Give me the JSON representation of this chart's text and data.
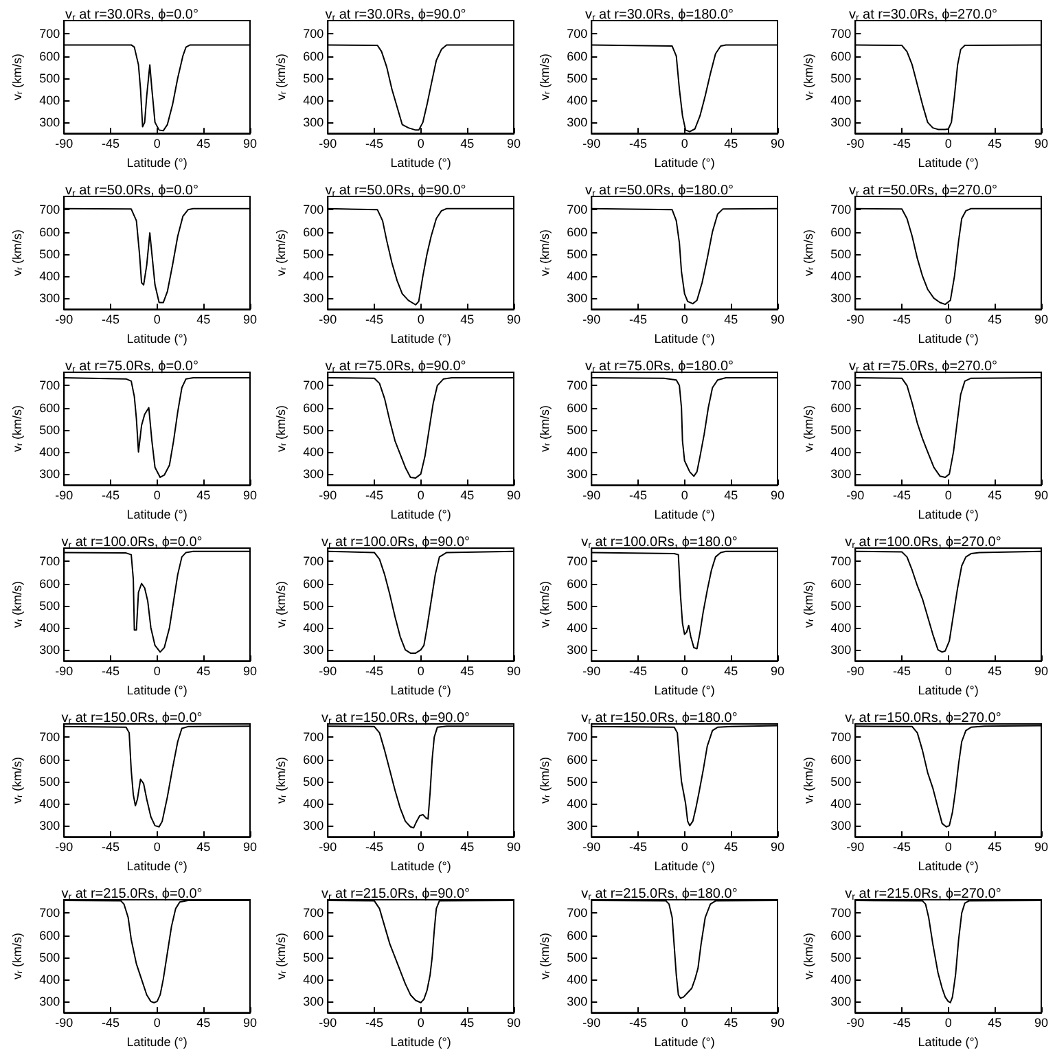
{
  "chart_data": [
    {
      "type": "line",
      "title": "v$_{r}$ at r=30.0Rs, ϕ=0.0°",
      "xlabel": "Latitude (°)",
      "ylabel": "v$_{r}$ (km/s)",
      "color": "#000000",
      "xlim": [
        -90,
        90
      ],
      "xticks": [
        -90,
        -45,
        0,
        45,
        90
      ],
      "ylim": [
        250,
        760
      ],
      "yticks": [
        300,
        400,
        500,
        600,
        700
      ],
      "x": [
        -90,
        -25,
        -22,
        -18,
        -16,
        -14,
        -12,
        -10,
        -7,
        -5,
        -2,
        2,
        6,
        10,
        15,
        20,
        25,
        28,
        32,
        90
      ],
      "values": [
        650,
        650,
        640,
        560,
        450,
        280,
        300,
        420,
        560,
        450,
        300,
        265,
        262,
        290,
        380,
        500,
        600,
        640,
        650,
        650
      ]
    },
    {
      "type": "line",
      "title": "v$_{r}$ at r=30.0Rs, ϕ=90.0°",
      "xlabel": "Latitude (°)",
      "ylabel": "v$_{r}$ (km/s)",
      "color": "#000000",
      "xlim": [
        -90,
        90
      ],
      "xticks": [
        -90,
        -45,
        0,
        45,
        90
      ],
      "ylim": [
        250,
        760
      ],
      "yticks": [
        300,
        400,
        500,
        600,
        700
      ],
      "x": [
        -90,
        -42,
        -38,
        -33,
        -28,
        -23,
        -18,
        -12,
        -5,
        -2,
        2,
        6,
        10,
        15,
        20,
        25,
        90
      ],
      "values": [
        650,
        648,
        620,
        550,
        450,
        370,
        290,
        275,
        265,
        265,
        300,
        380,
        470,
        580,
        630,
        650,
        650
      ]
    },
    {
      "type": "line",
      "title": "v$_{r}$ at r=30.0Rs, ϕ=180.0°",
      "xlabel": "Latitude (°)",
      "ylabel": "v$_{r}$ (km/s)",
      "color": "#000000",
      "xlim": [
        -90,
        90
      ],
      "xticks": [
        -90,
        -45,
        0,
        45,
        90
      ],
      "ylim": [
        250,
        760
      ],
      "yticks": [
        300,
        400,
        500,
        600,
        700
      ],
      "x": [
        -90,
        -12,
        -8,
        -5,
        -2,
        1,
        5,
        10,
        15,
        20,
        25,
        30,
        35,
        40,
        90
      ],
      "values": [
        650,
        645,
        600,
        450,
        330,
        265,
        258,
        270,
        330,
        420,
        520,
        610,
        645,
        650,
        650
      ]
    },
    {
      "type": "line",
      "title": "v$_{r}$ at r=30.0Rs, ϕ=270.0°",
      "xlabel": "Latitude (°)",
      "ylabel": "v$_{r}$ (km/s)",
      "color": "#000000",
      "xlim": [
        -90,
        90
      ],
      "xticks": [
        -90,
        -45,
        0,
        45,
        90
      ],
      "ylim": [
        250,
        760
      ],
      "yticks": [
        300,
        400,
        500,
        600,
        700
      ],
      "x": [
        -90,
        -45,
        -40,
        -35,
        -30,
        -25,
        -20,
        -15,
        -10,
        -3,
        0,
        3,
        6,
        9,
        12,
        16,
        90
      ],
      "values": [
        650,
        648,
        620,
        560,
        470,
        380,
        300,
        275,
        268,
        268,
        270,
        300,
        420,
        560,
        630,
        648,
        650
      ]
    },
    {
      "type": "line",
      "title": "v$_{r}$ at r=50.0Rs, ϕ=0.0°",
      "xlabel": "Latitude (°)",
      "ylabel": "v$_{r}$ (km/s)",
      "color": "#000000",
      "xlim": [
        -90,
        90
      ],
      "xticks": [
        -90,
        -45,
        0,
        45,
        90
      ],
      "ylim": [
        250,
        760
      ],
      "yticks": [
        300,
        400,
        500,
        600,
        700
      ],
      "x": [
        -90,
        -25,
        -20,
        -17,
        -15,
        -13,
        -10,
        -7,
        -5,
        -2,
        2,
        6,
        10,
        15,
        20,
        25,
        30,
        35,
        90
      ],
      "values": [
        705,
        703,
        650,
        500,
        370,
        360,
        450,
        595,
        500,
        360,
        280,
        280,
        330,
        450,
        580,
        670,
        700,
        705,
        705
      ]
    },
    {
      "type": "line",
      "title": "v$_{r}$ at r=50.0Rs, ϕ=90.0°",
      "xlabel": "Latitude (°)",
      "ylabel": "v$_{r}$ (km/s)",
      "color": "#000000",
      "xlim": [
        -90,
        90
      ],
      "xticks": [
        -90,
        -45,
        0,
        45,
        90
      ],
      "ylim": [
        250,
        760
      ],
      "yticks": [
        300,
        400,
        500,
        600,
        700
      ],
      "x": [
        -90,
        -42,
        -37,
        -33,
        -28,
        -23,
        -18,
        -12,
        -5,
        -2,
        2,
        6,
        10,
        15,
        20,
        25,
        90
      ],
      "values": [
        705,
        700,
        650,
        560,
        460,
        380,
        320,
        290,
        270,
        285,
        400,
        500,
        580,
        660,
        695,
        705,
        705
      ]
    },
    {
      "type": "line",
      "title": "v$_{r}$ at r=50.0Rs, ϕ=180.0°",
      "xlabel": "Latitude (°)",
      "ylabel": "v$_{r}$ (km/s)",
      "color": "#000000",
      "xlim": [
        -90,
        90
      ],
      "xticks": [
        -90,
        -45,
        0,
        45,
        90
      ],
      "ylim": [
        250,
        760
      ],
      "yticks": [
        300,
        400,
        500,
        600,
        700
      ],
      "x": [
        -90,
        -12,
        -8,
        -5,
        -3,
        0,
        3,
        8,
        12,
        17,
        22,
        27,
        32,
        37,
        90
      ],
      "values": [
        705,
        700,
        650,
        550,
        420,
        320,
        285,
        275,
        290,
        370,
        480,
        600,
        680,
        703,
        705
      ]
    },
    {
      "type": "line",
      "title": "v$_{r}$ at r=50.0Rs, ϕ=270.0°",
      "xlabel": "Latitude (°)",
      "ylabel": "v$_{r}$ (km/s)",
      "color": "#000000",
      "xlim": [
        -90,
        90
      ],
      "xticks": [
        -90,
        -45,
        0,
        45,
        90
      ],
      "ylim": [
        250,
        760
      ],
      "yticks": [
        300,
        400,
        500,
        600,
        700
      ],
      "x": [
        -90,
        -45,
        -40,
        -35,
        -30,
        -25,
        -20,
        -14,
        -8,
        -3,
        2,
        6,
        10,
        13,
        17,
        22,
        90
      ],
      "values": [
        705,
        703,
        660,
        580,
        480,
        400,
        340,
        300,
        280,
        272,
        290,
        400,
        560,
        660,
        695,
        705,
        705
      ]
    },
    {
      "type": "line",
      "title": "v$_{r}$ at r=75.0Rs, ϕ=0.0°",
      "xlabel": "Latitude (°)",
      "ylabel": "v$_{r}$ (km/s)",
      "color": "#000000",
      "xlim": [
        -90,
        90
      ],
      "xticks": [
        -90,
        -45,
        0,
        45,
        90
      ],
      "ylim": [
        250,
        760
      ],
      "yticks": [
        300,
        400,
        500,
        600,
        700
      ],
      "x": [
        -90,
        -30,
        -25,
        -22,
        -20,
        -18,
        -15,
        -12,
        -8,
        -5,
        -2,
        3,
        7,
        12,
        16,
        20,
        24,
        28,
        35,
        90
      ],
      "values": [
        735,
        730,
        720,
        650,
        550,
        400,
        520,
        570,
        600,
        450,
        330,
        285,
        295,
        340,
        450,
        580,
        690,
        730,
        735,
        735
      ]
    },
    {
      "type": "line",
      "title": "v$_{r}$ at r=75.0Rs, ϕ=90.0°",
      "xlabel": "Latitude (°)",
      "ylabel": "v$_{r}$ (km/s)",
      "color": "#000000",
      "xlim": [
        -90,
        90
      ],
      "xticks": [
        -90,
        -45,
        0,
        45,
        90
      ],
      "ylim": [
        250,
        760
      ],
      "yticks": [
        300,
        400,
        500,
        600,
        700
      ],
      "x": [
        -90,
        -45,
        -40,
        -35,
        -30,
        -25,
        -20,
        -15,
        -10,
        -5,
        0,
        4,
        8,
        12,
        16,
        22,
        30,
        90
      ],
      "values": [
        735,
        733,
        710,
        640,
        540,
        450,
        390,
        330,
        285,
        282,
        300,
        380,
        500,
        620,
        700,
        730,
        735,
        735
      ]
    },
    {
      "type": "line",
      "title": "v$_{r}$ at r=75.0Rs, ϕ=180.0°",
      "xlabel": "Latitude (°)",
      "ylabel": "v$_{r}$ (km/s)",
      "color": "#000000",
      "xlim": [
        -90,
        90
      ],
      "xticks": [
        -90,
        -45,
        0,
        45,
        90
      ],
      "ylim": [
        250,
        760
      ],
      "yticks": [
        300,
        400,
        500,
        600,
        700
      ],
      "x": [
        -90,
        -20,
        -8,
        -5,
        -3,
        -2,
        0,
        2,
        5,
        9,
        12,
        15,
        19,
        23,
        27,
        32,
        40,
        90
      ],
      "values": [
        735,
        733,
        725,
        700,
        600,
        450,
        360,
        340,
        310,
        290,
        310,
        380,
        480,
        600,
        690,
        725,
        735,
        735
      ]
    },
    {
      "type": "line",
      "title": "v$_{r}$ at r=75.0Rs, ϕ=270.0°",
      "xlabel": "Latitude (°)",
      "ylabel": "v$_{r}$ (km/s)",
      "color": "#000000",
      "xlim": [
        -90,
        90
      ],
      "xticks": [
        -90,
        -45,
        0,
        45,
        90
      ],
      "ylim": [
        250,
        760
      ],
      "yticks": [
        300,
        400,
        500,
        600,
        700
      ],
      "x": [
        -90,
        -45,
        -40,
        -35,
        -30,
        -25,
        -20,
        -14,
        -8,
        -3,
        1,
        5,
        9,
        12,
        16,
        22,
        90
      ],
      "values": [
        735,
        733,
        700,
        620,
        530,
        460,
        400,
        330,
        290,
        285,
        300,
        400,
        550,
        660,
        720,
        733,
        735
      ]
    },
    {
      "type": "line",
      "title": "v$_{r}$ at r=100.0Rs, ϕ=0.0°",
      "xlabel": "Latitude (°)",
      "ylabel": "v$_{r}$ (km/s)",
      "color": "#000000",
      "xlim": [
        -90,
        90
      ],
      "xticks": [
        -90,
        -45,
        0,
        45,
        90
      ],
      "ylim": [
        250,
        760
      ],
      "yticks": [
        300,
        400,
        500,
        600,
        700
      ],
      "x": [
        -90,
        -30,
        -25,
        -23,
        -22,
        -20,
        -18,
        -15,
        -12,
        -9,
        -6,
        -2,
        3,
        7,
        12,
        16,
        20,
        24,
        28,
        35,
        90
      ],
      "values": [
        740,
        738,
        730,
        620,
        390,
        390,
        560,
        600,
        580,
        520,
        400,
        320,
        290,
        310,
        400,
        520,
        640,
        720,
        740,
        745,
        745
      ]
    },
    {
      "type": "line",
      "title": "v$_{r}$ at r=100.0Rs, ϕ=90.0°",
      "xlabel": "Latitude (°)",
      "ylabel": "v$_{r}$ (km/s)",
      "color": "#000000",
      "xlim": [
        -90,
        90
      ],
      "xticks": [
        -90,
        -45,
        0,
        45,
        90
      ],
      "ylim": [
        250,
        760
      ],
      "yticks": [
        300,
        400,
        500,
        600,
        700
      ],
      "x": [
        -90,
        -45,
        -40,
        -35,
        -30,
        -25,
        -20,
        -15,
        -10,
        -5,
        0,
        3,
        6,
        10,
        14,
        18,
        25,
        90
      ],
      "values": [
        745,
        740,
        710,
        640,
        550,
        450,
        360,
        300,
        285,
        285,
        300,
        320,
        400,
        520,
        640,
        720,
        740,
        745
      ]
    },
    {
      "type": "line",
      "title": "v$_{r}$ at r=100.0Rs, ϕ=180.0°",
      "xlabel": "Latitude (°)",
      "ylabel": "v$_{r}$ (km/s)",
      "color": "#000000",
      "xlim": [
        -90,
        90
      ],
      "xticks": [
        -90,
        -45,
        0,
        45,
        90
      ],
      "ylim": [
        250,
        760
      ],
      "yticks": [
        300,
        400,
        500,
        600,
        700
      ],
      "x": [
        -90,
        -10,
        -6,
        -4,
        -2,
        0,
        2,
        4,
        6,
        9,
        12,
        15,
        18,
        22,
        26,
        30,
        35,
        40,
        90
      ],
      "values": [
        740,
        735,
        730,
        550,
        420,
        370,
        380,
        410,
        360,
        310,
        305,
        380,
        470,
        570,
        660,
        720,
        740,
        745,
        745
      ]
    },
    {
      "type": "line",
      "title": "v$_{r}$ at r=100.0Rs, ϕ=270.0°",
      "xlabel": "Latitude (°)",
      "ylabel": "v$_{r}$ (km/s)",
      "color": "#000000",
      "xlim": [
        -90,
        90
      ],
      "xticks": [
        -90,
        -45,
        0,
        45,
        90
      ],
      "ylim": [
        250,
        760
      ],
      "yticks": [
        300,
        400,
        500,
        600,
        700
      ],
      "x": [
        -90,
        -45,
        -40,
        -35,
        -30,
        -25,
        -20,
        -15,
        -10,
        -6,
        -3,
        1,
        5,
        9,
        13,
        17,
        22,
        30,
        90
      ],
      "values": [
        745,
        743,
        720,
        660,
        590,
        530,
        450,
        370,
        300,
        290,
        295,
        340,
        460,
        580,
        680,
        720,
        735,
        740,
        745
      ]
    },
    {
      "type": "line",
      "title": "v$_{r}$ at r=150.0Rs, ϕ=0.0°",
      "xlabel": "Latitude (°)",
      "ylabel": "v$_{r}$ (km/s)",
      "color": "#000000",
      "xlim": [
        -90,
        90
      ],
      "xticks": [
        -90,
        -45,
        0,
        45,
        90
      ],
      "ylim": [
        250,
        760
      ],
      "yticks": [
        300,
        400,
        500,
        600,
        700
      ],
      "x": [
        -90,
        -30,
        -27,
        -25,
        -23,
        -21,
        -19,
        -16,
        -13,
        -10,
        -6,
        -2,
        2,
        5,
        10,
        15,
        20,
        24,
        30,
        90
      ],
      "values": [
        748,
        745,
        720,
        550,
        440,
        390,
        420,
        510,
        490,
        420,
        340,
        300,
        295,
        320,
        430,
        560,
        680,
        740,
        748,
        750
      ]
    },
    {
      "type": "line",
      "title": "v$_{r}$ at r=150.0Rs, ϕ=90.0°",
      "xlabel": "Latitude (°)",
      "ylabel": "v$_{r}$ (km/s)",
      "color": "#000000",
      "xlim": [
        -90,
        90
      ],
      "xticks": [
        -90,
        -45,
        0,
        45,
        90
      ],
      "ylim": [
        250,
        760
      ],
      "yticks": [
        300,
        400,
        500,
        600,
        700
      ],
      "x": [
        -90,
        -45,
        -40,
        -35,
        -30,
        -25,
        -20,
        -15,
        -10,
        -7,
        -4,
        -1,
        2,
        5,
        7,
        9,
        11,
        13,
        16,
        25,
        90
      ],
      "values": [
        750,
        748,
        720,
        640,
        550,
        460,
        380,
        320,
        295,
        290,
        320,
        345,
        350,
        335,
        330,
        450,
        600,
        700,
        745,
        750,
        750
      ]
    },
    {
      "type": "line",
      "title": "v$_{r}$ at r=150.0Rs, ϕ=180.0°",
      "xlabel": "Latitude (°)",
      "ylabel": "v$_{r}$ (km/s)",
      "color": "#000000",
      "xlim": [
        -90,
        90
      ],
      "xticks": [
        -90,
        -45,
        0,
        45,
        90
      ],
      "ylim": [
        250,
        760
      ],
      "yticks": [
        300,
        400,
        500,
        600,
        700
      ],
      "x": [
        -90,
        -10,
        -7,
        -5,
        -3,
        -1,
        1,
        3,
        5,
        8,
        11,
        14,
        18,
        22,
        27,
        32,
        45,
        90
      ],
      "values": [
        748,
        745,
        720,
        600,
        500,
        450,
        400,
        320,
        300,
        320,
        380,
        450,
        550,
        660,
        730,
        745,
        748,
        752
      ]
    },
    {
      "type": "line",
      "title": "v$_{r}$ at r=150.0Rs, ϕ=270.0°",
      "xlabel": "Latitude (°)",
      "ylabel": "v$_{r}$ (km/s)",
      "color": "#000000",
      "xlim": [
        -90,
        90
      ],
      "xticks": [
        -90,
        -45,
        0,
        45,
        90
      ],
      "ylim": [
        250,
        760
      ],
      "yticks": [
        300,
        400,
        500,
        600,
        700
      ],
      "x": [
        -90,
        -35,
        -30,
        -25,
        -20,
        -15,
        -10,
        -6,
        -2,
        1,
        4,
        7,
        10,
        13,
        17,
        22,
        35,
        90
      ],
      "values": [
        750,
        748,
        720,
        640,
        540,
        470,
        380,
        310,
        295,
        300,
        360,
        460,
        580,
        680,
        730,
        745,
        750,
        752
      ]
    },
    {
      "type": "line",
      "title": "v$_{r}$ at r=215.0Rs, ϕ=0.0°",
      "xlabel": "Latitude (°)",
      "ylabel": "v$_{r}$ (km/s)",
      "color": "#000000",
      "xlim": [
        -90,
        90
      ],
      "xticks": [
        -90,
        -45,
        0,
        45,
        90
      ],
      "ylim": [
        250,
        760
      ],
      "yticks": [
        300,
        400,
        500,
        600,
        700
      ],
      "x": [
        -90,
        -35,
        -32,
        -28,
        -25,
        -20,
        -15,
        -10,
        -6,
        -3,
        0,
        3,
        6,
        10,
        14,
        18,
        22,
        30,
        90
      ],
      "values": [
        757,
        755,
        740,
        680,
        580,
        470,
        400,
        330,
        300,
        295,
        300,
        330,
        400,
        520,
        640,
        720,
        750,
        757,
        757
      ]
    },
    {
      "type": "line",
      "title": "v$_{r}$ at r=215.0Rs, ϕ=90.0°",
      "xlabel": "Latitude (°)",
      "ylabel": "v$_{r}$ (km/s)",
      "color": "#000000",
      "xlim": [
        -90,
        90
      ],
      "xticks": [
        -90,
        -45,
        0,
        45,
        90
      ],
      "ylim": [
        250,
        760
      ],
      "yticks": [
        300,
        400,
        500,
        600,
        700
      ],
      "x": [
        -90,
        -45,
        -40,
        -35,
        -30,
        -25,
        -20,
        -15,
        -10,
        -5,
        0,
        3,
        6,
        9,
        11,
        13,
        15,
        18,
        90
      ],
      "values": [
        757,
        755,
        720,
        640,
        560,
        500,
        440,
        380,
        330,
        305,
        295,
        310,
        350,
        420,
        500,
        620,
        720,
        755,
        757
      ]
    },
    {
      "type": "line",
      "title": "v$_{r}$ at r=215.0Rs, ϕ=180.0°",
      "xlabel": "Latitude (°)",
      "ylabel": "v$_{r}$ (km/s)",
      "color": "#000000",
      "xlim": [
        -90,
        90
      ],
      "xticks": [
        -90,
        -45,
        0,
        45,
        90
      ],
      "ylim": [
        250,
        760
      ],
      "yticks": [
        300,
        400,
        500,
        600,
        700
      ],
      "x": [
        -90,
        -18,
        -15,
        -12,
        -10,
        -8,
        -6,
        -4,
        -1,
        3,
        7,
        10,
        13,
        16,
        20,
        25,
        30,
        90
      ],
      "values": [
        757,
        755,
        740,
        680,
        550,
        420,
        330,
        315,
        320,
        340,
        360,
        400,
        450,
        560,
        680,
        740,
        755,
        757
      ]
    },
    {
      "type": "line",
      "title": "v$_{r}$ at r=215.0Rs, ϕ=270.0°",
      "xlabel": "Latitude (°)",
      "ylabel": "v$_{r}$ (km/s)",
      "color": "#000000",
      "xlim": [
        -90,
        90
      ],
      "xticks": [
        -90,
        -45,
        0,
        45,
        90
      ],
      "ylim": [
        250,
        760
      ],
      "yticks": [
        300,
        400,
        500,
        600,
        700
      ],
      "x": [
        -90,
        -25,
        -22,
        -19,
        -15,
        -10,
        -6,
        -3,
        0,
        2,
        4,
        7,
        10,
        13,
        16,
        20,
        90
      ],
      "values": [
        757,
        755,
        740,
        680,
        560,
        430,
        360,
        320,
        300,
        295,
        320,
        420,
        580,
        700,
        745,
        755,
        757
      ]
    }
  ]
}
